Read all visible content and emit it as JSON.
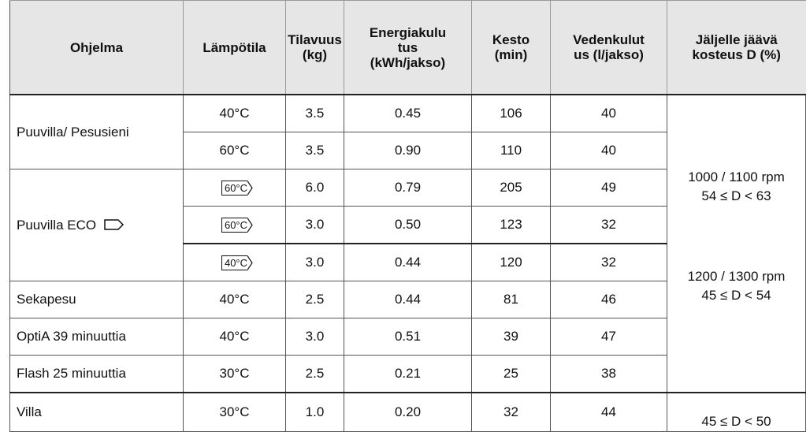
{
  "table": {
    "header": [
      "Ohjelma",
      "Lämpötila",
      "Tilavuus\n(kg)",
      "Energiakulu\ntus\n(kWh/jakso)",
      "Kesto\n(min)",
      "Vedenkulut\nus (l/jakso)",
      "Jäljelle jäävä\nkosteus D (%)"
    ],
    "programs": [
      "Puuvilla/ Pesusieni",
      "Puuvilla ECO",
      "Sekapesu",
      "OptiA 39 minuuttia",
      "Flash 25 minuuttia",
      "Villa"
    ],
    "rows": [
      [
        "40°C",
        "3.5",
        "0.45",
        "106",
        "40"
      ],
      [
        "60°C",
        "3.5",
        "0.90",
        "110",
        "40"
      ],
      [
        "60°C",
        "6.0",
        "0.79",
        "205",
        "49"
      ],
      [
        "60°C",
        "3.0",
        "0.50",
        "123",
        "32"
      ],
      [
        "40°C",
        "3.0",
        "0.44",
        "120",
        "32"
      ],
      [
        "40°C",
        "2.5",
        "0.44",
        "81",
        "46"
      ],
      [
        "40°C",
        "3.0",
        "0.51",
        "39",
        "47"
      ],
      [
        "30°C",
        "2.5",
        "0.21",
        "25",
        "38"
      ],
      [
        "30°C",
        "1.0",
        "0.20",
        "32",
        "44"
      ]
    ],
    "moisture": [
      "1000 / 1100 rpm",
      "54 ≤ D < 63",
      "1200 / 1300 rpm",
      "45 ≤ D < 54",
      "45 ≤ D < 50"
    ]
  }
}
